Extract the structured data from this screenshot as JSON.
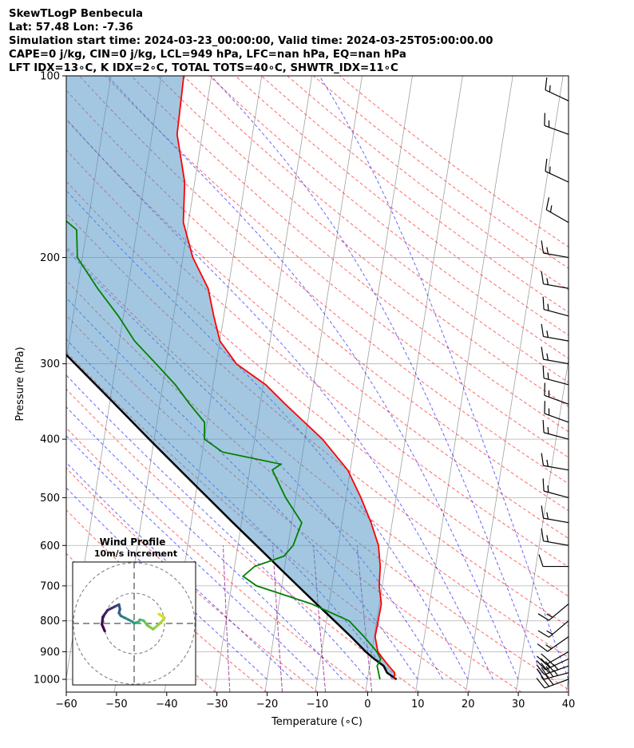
{
  "header": {
    "line1": "SkewTLogP Benbecula",
    "line2": "Lat: 57.48   Lon: -7.36",
    "line3": "Simulation start time: 2024-03-23_00:00:00, Valid time: 2024-03-25T05:00:00.00",
    "line4": "CAPE=0 j/kg, CIN=0 j/kg, LCL=949 hPa, LFC=nan hPa, EQ=nan hPa",
    "line5": "LFT IDX=13∘C, K IDX=2∘C, TOTAL TOTS=40∘C, SHWTR_IDX=11∘C"
  },
  "chart_data": {
    "type": "line",
    "subtype": "skew-T log-p",
    "xlabel": "Temperature (∘C)",
    "ylabel": "Pressure (hPa)",
    "xlim": [
      -60,
      40
    ],
    "ylim": [
      1050,
      100
    ],
    "y_scale": "log",
    "x_ticks": [
      -60,
      -50,
      -40,
      -30,
      -20,
      -10,
      0,
      10,
      20,
      30,
      40
    ],
    "x_tick_labels": [
      "−60",
      "−50",
      "−40",
      "−30",
      "−20",
      "−10",
      "0",
      "10",
      "20",
      "30",
      "40"
    ],
    "y_ticks": [
      1000,
      900,
      800,
      700,
      600,
      500,
      400,
      300,
      200,
      100
    ],
    "y_tick_labels": [
      "1000",
      "900",
      "800",
      "700",
      "600",
      "500",
      "400",
      "300",
      "200",
      "100"
    ],
    "grid": true,
    "colors": {
      "temperature": "#ff0000",
      "dewpoint": "#008000",
      "parcel": "#000000",
      "shading": "#4f93c3",
      "dry_adiabats": "#ff0000",
      "moist_adiabats": "#0000ff",
      "mixing_ratio": "#800080",
      "isotherms": "#a0a0a0"
    },
    "temperature": {
      "pressure": [
        1000,
        975,
        950,
        925,
        900,
        850,
        800,
        750,
        700,
        650,
        600,
        550,
        500,
        450,
        400,
        350,
        325,
        300,
        275,
        250,
        225,
        200,
        175,
        150,
        125,
        100
      ],
      "values": [
        5.3,
        5.2,
        3.8,
        2.5,
        1.2,
        0.2,
        0.3,
        0.4,
        -0.6,
        -1.0,
        -2.0,
        -4.2,
        -7.0,
        -10.5,
        -16.5,
        -25.0,
        -29.5,
        -36.0,
        -40.0,
        -42.0,
        -44.0,
        -48.0,
        -51.0,
        -52.0,
        -55.0,
        -55.5
      ]
    },
    "dewpoint": {
      "pressure": [
        1000,
        975,
        950,
        925,
        900,
        850,
        800,
        750,
        700,
        675,
        650,
        625,
        600,
        550,
        500,
        450,
        440,
        420,
        400,
        375,
        350,
        325,
        300,
        275,
        250,
        225,
        200,
        180,
        170,
        150,
        130,
        100
      ],
      "values": [
        2.5,
        2.0,
        1.5,
        2.0,
        1.0,
        -2.0,
        -5.5,
        -13.5,
        -25.0,
        -28.0,
        -26.0,
        -20.5,
        -19.0,
        -18.0,
        -22.0,
        -25.5,
        -24.0,
        -36.0,
        -40.0,
        -40.5,
        -44.0,
        -47.5,
        -52.0,
        -57.0,
        -61.0,
        -66.0,
        -71.0,
        -72.0,
        -76.0,
        -80.0,
        -84.0,
        -85.0
      ]
    },
    "parcel": {
      "pressure": [
        1000,
        975,
        950,
        925,
        900,
        850,
        800,
        750,
        700,
        650,
        600,
        550,
        500,
        450,
        400,
        350,
        300,
        250,
        200,
        150,
        100
      ],
      "values": [
        5.8,
        3.7,
        2.8,
        0.7,
        -1.2,
        -4.6,
        -8.4,
        -12.5,
        -16.8,
        -21.4,
        -26.3,
        -31.7,
        -37.5,
        -43.9,
        -51.0,
        -58.9,
        -68.1,
        -79.0,
        -92.2,
        -109.2,
        -133.6
      ]
    },
    "wind_profile": {
      "title": "Wind Profile",
      "subtitle": "10m/s increment",
      "u": [
        26,
        32,
        29,
        26,
        20,
        14,
        10,
        6,
        4,
        2,
        0,
        -2,
        -6,
        -10,
        -14,
        -16,
        -15,
        -16,
        -20,
        -24,
        -28,
        -33,
        -34,
        -31
      ],
      "v": [
        10,
        6,
        2,
        -1,
        -6,
        -2,
        3,
        4,
        1,
        1,
        0,
        2,
        4,
        6,
        8,
        11,
        15,
        20,
        18,
        16,
        14,
        7,
        -1,
        -8
      ],
      "color_start": "#440154",
      "color_end": "#d7e21f"
    },
    "wind_barbs": {
      "pressure": [
        1000,
        975,
        950,
        925,
        900,
        850,
        800,
        750,
        650,
        600,
        550,
        500,
        450,
        400,
        375,
        350,
        325,
        300,
        275,
        250,
        225,
        200,
        175,
        150,
        125,
        110
      ],
      "speed_kt": [
        30,
        35,
        35,
        25,
        20,
        15,
        15,
        15,
        10,
        15,
        15,
        15,
        15,
        15,
        15,
        15,
        15,
        15,
        15,
        15,
        15,
        15,
        15,
        15,
        15,
        15
      ],
      "direction_deg": [
        250,
        255,
        250,
        245,
        240,
        235,
        230,
        230,
        270,
        280,
        280,
        285,
        280,
        285,
        290,
        290,
        285,
        280,
        280,
        285,
        280,
        280,
        300,
        295,
        290,
        295
      ]
    },
    "hodograph_rings_ms": [
      10,
      20,
      30
    ]
  }
}
